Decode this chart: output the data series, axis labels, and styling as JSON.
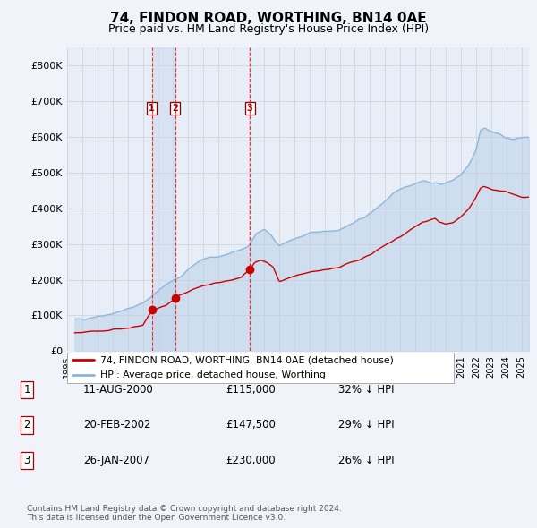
{
  "title": "74, FINDON ROAD, WORTHING, BN14 0AE",
  "subtitle": "Price paid vs. HM Land Registry's House Price Index (HPI)",
  "background_color": "#f0f4fa",
  "plot_bg_color": "#e8eef8",
  "hpi_color": "#8ab4d8",
  "hpi_fill_color": "#b8d0e8",
  "price_color": "#cc0000",
  "ylim": [
    0,
    850000
  ],
  "yticks": [
    0,
    100000,
    200000,
    300000,
    400000,
    500000,
    600000,
    700000,
    800000
  ],
  "ytick_labels": [
    "£0",
    "£100K",
    "£200K",
    "£300K",
    "£400K",
    "£500K",
    "£600K",
    "£700K",
    "£800K"
  ],
  "x_start_year": 1995.5,
  "x_end_year": 2025.5,
  "transactions": [
    {
      "num": 1,
      "date_label": "11-AUG-2000",
      "price": 115000,
      "pct": "32%",
      "year": 2000.6
    },
    {
      "num": 2,
      "date_label": "20-FEB-2002",
      "price": 147500,
      "pct": "29%",
      "year": 2002.13
    },
    {
      "num": 3,
      "date_label": "26-JAN-2007",
      "price": 230000,
      "pct": "26%",
      "year": 2007.07
    }
  ],
  "legend_line1": "74, FINDON ROAD, WORTHING, BN14 0AE (detached house)",
  "legend_line2": "HPI: Average price, detached house, Worthing",
  "footer": "Contains HM Land Registry data © Crown copyright and database right 2024.\nThis data is licensed under the Open Government Licence v3.0.",
  "table_rows": [
    [
      "1",
      "11-AUG-2000",
      "£115,000",
      "32% ↓ HPI"
    ],
    [
      "2",
      "20-FEB-2002",
      "£147,500",
      "29% ↓ HPI"
    ],
    [
      "3",
      "26-JAN-2007",
      "£230,000",
      "26% ↓ HPI"
    ]
  ]
}
